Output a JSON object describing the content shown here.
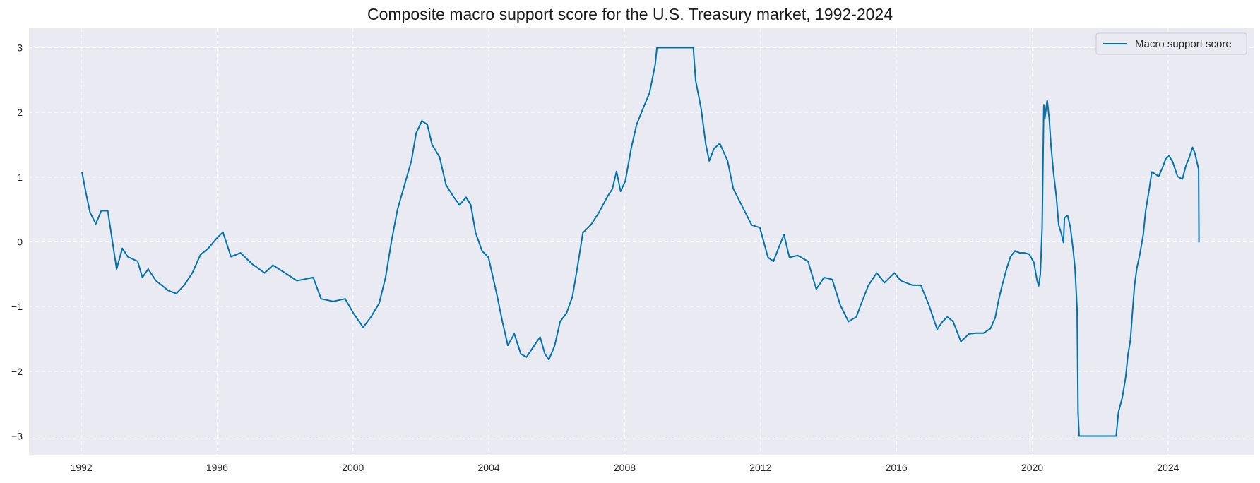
{
  "chart_data": {
    "type": "line",
    "title": "Composite macro support score for the U.S. Treasury market, 1992-2024",
    "xlabel": "",
    "ylabel": "",
    "xlim": [
      1990.46,
      2026.54
    ],
    "ylim": [
      -3.3,
      3.3
    ],
    "x_ticks": [
      1992,
      1996,
      2000,
      2004,
      2008,
      2012,
      2016,
      2020,
      2024
    ],
    "x_tick_labels": [
      "1992",
      "1996",
      "2000",
      "2004",
      "2008",
      "2012",
      "2016",
      "2020",
      "2024"
    ],
    "y_ticks": [
      3,
      2,
      1,
      0,
      -1,
      -2,
      -3
    ],
    "y_tick_labels": [
      "3",
      "2",
      "1",
      "0",
      "−1",
      "−2",
      "−3"
    ],
    "grid": true,
    "grid_style": "dashed",
    "background_color": "#eaeaf2",
    "legend_position": "top-right",
    "series": [
      {
        "name": "Macro support score",
        "color": "#0173b2",
        "x": [
          1992.02,
          1992.14,
          1992.26,
          1992.43,
          1992.59,
          1992.78,
          1992.9,
          1993.04,
          1993.21,
          1993.37,
          1993.66,
          1993.8,
          1993.97,
          1994.2,
          1994.56,
          1994.8,
          1995.03,
          1995.27,
          1995.51,
          1995.74,
          1995.98,
          1996.17,
          1996.41,
          1996.69,
          1997.05,
          1997.4,
          1997.64,
          1998.0,
          1998.35,
          1998.54,
          1998.83,
          1999.06,
          1999.42,
          1999.77,
          2000.01,
          2000.3,
          2000.53,
          2000.77,
          2000.96,
          2001.13,
          2001.31,
          2001.55,
          2001.72,
          2001.86,
          2002.03,
          2002.19,
          2002.33,
          2002.55,
          2002.74,
          2002.97,
          2003.14,
          2003.33,
          2003.47,
          2003.61,
          2003.8,
          2003.99,
          2004.23,
          2004.4,
          2004.56,
          2004.75,
          2004.94,
          2005.11,
          2005.34,
          2005.51,
          2005.65,
          2005.77,
          2005.94,
          2006.1,
          2006.29,
          2006.46,
          2006.6,
          2006.77,
          2007.0,
          2007.24,
          2007.48,
          2007.64,
          2007.76,
          2007.88,
          2008.02,
          2008.19,
          2008.35,
          2008.54,
          2008.73,
          2008.9,
          2008.95,
          2010.02,
          2010.09,
          2010.25,
          2010.39,
          2010.49,
          2010.63,
          2010.8,
          2011.03,
          2011.2,
          2011.44,
          2011.74,
          2011.98,
          2012.22,
          2012.38,
          2012.52,
          2012.69,
          2012.85,
          2013.09,
          2013.4,
          2013.64,
          2013.87,
          2014.11,
          2014.35,
          2014.59,
          2014.82,
          2014.99,
          2015.18,
          2015.42,
          2015.65,
          2015.94,
          2016.13,
          2016.48,
          2016.72,
          2016.96,
          2017.2,
          2017.36,
          2017.5,
          2017.67,
          2017.9,
          2018.14,
          2018.35,
          2018.56,
          2018.77,
          2018.91,
          2019.01,
          2019.11,
          2019.25,
          2019.36,
          2019.49,
          2019.63,
          2019.77,
          2019.91,
          2020.05,
          2020.14,
          2020.19,
          2020.24,
          2020.29,
          2020.34,
          2020.37,
          2020.44,
          2020.5,
          2020.55,
          2020.62,
          2020.71,
          2020.78,
          2020.86,
          2020.92,
          2020.95,
          2021.04,
          2021.12,
          2021.2,
          2021.26,
          2021.32,
          2021.35,
          2021.38,
          2022.47,
          2022.54,
          2022.65,
          2022.75,
          2022.82,
          2022.89,
          2022.96,
          2023.01,
          2023.08,
          2023.17,
          2023.27,
          2023.34,
          2023.45,
          2023.52,
          2023.62,
          2023.72,
          2023.83,
          2023.93,
          2024.03,
          2024.14,
          2024.28,
          2024.42,
          2024.52,
          2024.62,
          2024.72,
          2024.79,
          2024.9,
          2024.91
        ],
        "y": [
          1.08,
          0.75,
          0.45,
          0.28,
          0.48,
          0.48,
          0.07,
          -0.42,
          -0.1,
          -0.23,
          -0.3,
          -0.55,
          -0.42,
          -0.6,
          -0.75,
          -0.8,
          -0.67,
          -0.48,
          -0.2,
          -0.1,
          0.05,
          0.15,
          -0.23,
          -0.17,
          -0.35,
          -0.48,
          -0.36,
          -0.48,
          -0.6,
          -0.58,
          -0.55,
          -0.88,
          -0.92,
          -0.88,
          -1.1,
          -1.32,
          -1.16,
          -0.95,
          -0.55,
          0.0,
          0.5,
          0.94,
          1.25,
          1.68,
          1.87,
          1.81,
          1.5,
          1.31,
          0.88,
          0.69,
          0.57,
          0.69,
          0.57,
          0.14,
          -0.14,
          -0.24,
          -0.8,
          -1.23,
          -1.6,
          -1.42,
          -1.73,
          -1.78,
          -1.6,
          -1.47,
          -1.73,
          -1.82,
          -1.6,
          -1.23,
          -1.1,
          -0.85,
          -0.42,
          0.14,
          0.26,
          0.45,
          0.69,
          0.82,
          1.09,
          0.78,
          0.94,
          1.44,
          1.81,
          2.06,
          2.3,
          2.74,
          3.0,
          3.0,
          2.49,
          2.06,
          1.5,
          1.25,
          1.44,
          1.52,
          1.25,
          0.82,
          0.57,
          0.26,
          0.22,
          -0.24,
          -0.3,
          -0.11,
          0.11,
          -0.24,
          -0.21,
          -0.3,
          -0.73,
          -0.55,
          -0.58,
          -0.98,
          -1.23,
          -1.16,
          -0.92,
          -0.67,
          -0.48,
          -0.63,
          -0.48,
          -0.6,
          -0.67,
          -0.67,
          -0.98,
          -1.35,
          -1.23,
          -1.16,
          -1.23,
          -1.54,
          -1.42,
          -1.41,
          -1.41,
          -1.34,
          -1.17,
          -0.9,
          -0.68,
          -0.41,
          -0.23,
          -0.14,
          -0.17,
          -0.17,
          -0.19,
          -0.32,
          -0.59,
          -0.68,
          -0.5,
          0.21,
          2.12,
          1.9,
          2.19,
          1.9,
          1.5,
          1.1,
          0.7,
          0.26,
          0.12,
          -0.01,
          0.37,
          0.41,
          0.23,
          -0.1,
          -0.41,
          -1.03,
          -2.63,
          -3.0,
          -3.0,
          -2.63,
          -2.41,
          -2.1,
          -1.74,
          -1.52,
          -1.03,
          -0.68,
          -0.41,
          -0.19,
          0.12,
          0.48,
          0.83,
          1.08,
          1.05,
          1.01,
          1.14,
          1.28,
          1.33,
          1.23,
          1.01,
          0.97,
          1.17,
          1.3,
          1.46,
          1.37,
          1.12,
          -0.01
        ]
      }
    ]
  }
}
